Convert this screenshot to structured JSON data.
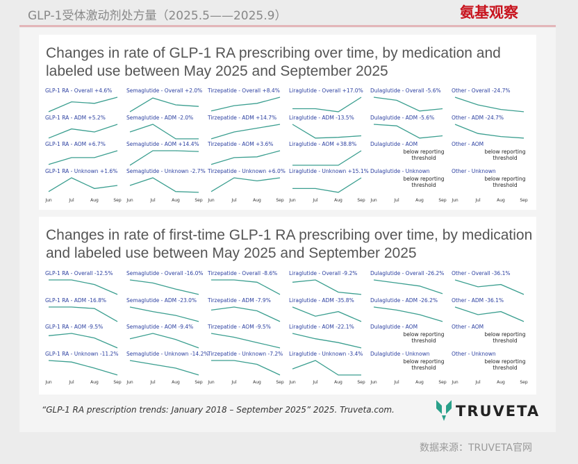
{
  "header": {
    "title": "GLP-1受体激动剂处方量（2025.5——2025.9）",
    "logo": "氨基观察"
  },
  "chart_data": [
    {
      "type": "line",
      "title": "Changes in rate of GLP-1 RA prescribing over time, by medication and labeled use between May 2025 and September 2025",
      "categories": [
        "Jun",
        "Jul",
        "Aug",
        "Sep"
      ],
      "ylim": [
        0,
        10
      ],
      "color": "#3a9e8f",
      "charts": [
        {
          "title": "GLP-1 RA - Overall +4.6%",
          "values": [
            0.5,
            7,
            6,
            10
          ]
        },
        {
          "title": "Semaglutide - Overall +2.0%",
          "values": [
            0.5,
            9.5,
            5,
            4
          ]
        },
        {
          "title": "Tirzepatide - Overall +8.4%",
          "values": [
            1,
            4.5,
            6,
            10
          ]
        },
        {
          "title": "Liraglutide - Overall +17.0%",
          "values": [
            2.5,
            2.5,
            0.5,
            10
          ]
        },
        {
          "title": "Dulaglutide - Overall -5.6%",
          "values": [
            10,
            8,
            1,
            2.5
          ]
        },
        {
          "title": "Other - Overall -24.7%",
          "values": [
            10,
            5,
            2,
            0.5
          ]
        },
        {
          "title": "GLP-1 RA - ADM +5.2%",
          "values": [
            1,
            7,
            5,
            10
          ]
        },
        {
          "title": "Semaglutide - ADM -2.0%",
          "values": [
            5,
            10,
            0.5,
            0.5
          ]
        },
        {
          "title": "Tirzepatide - ADM +14.7%",
          "values": [
            0.5,
            5,
            7.5,
            10
          ]
        },
        {
          "title": "Liraglutide - ADM -13.5%",
          "values": [
            10,
            1,
            1.5,
            2.5
          ]
        },
        {
          "title": "Dulaglutide - ADM -5.6%",
          "values": [
            10,
            9,
            1,
            2.5
          ]
        },
        {
          "title": "Other - ADM -24.7%",
          "values": [
            10,
            4,
            2,
            1
          ]
        },
        {
          "title": "GLP-1 RA - AOM +6.7%",
          "values": [
            1,
            5.5,
            5.5,
            10
          ]
        },
        {
          "title": "Semaglutide - AOM +14.4%",
          "values": [
            0.5,
            10,
            10,
            9.5
          ]
        },
        {
          "title": "Tirzepatide - AOM +3.6%",
          "values": [
            1,
            5.5,
            6,
            10
          ]
        },
        {
          "title": "Liraglutide - AOM +38.8%",
          "values": [
            0.5,
            0.5,
            0.5,
            10
          ]
        },
        {
          "title": "Dulaglutide - AOM",
          "note": "below reporting threshold"
        },
        {
          "title": "Other - AOM",
          "note": "below reporting threshold"
        },
        {
          "title": "GLP-1 RA - Unknown +1.6%",
          "values": [
            1,
            10,
            3,
            5
          ]
        },
        {
          "title": "Semaglutide - Unknown -2.7%",
          "values": [
            5,
            10,
            1,
            0.5
          ]
        },
        {
          "title": "Tirzepatide - Unknown +6.0%",
          "values": [
            1,
            10,
            8,
            10
          ]
        },
        {
          "title": "Liraglutide - Unknown +15.1%",
          "values": [
            3,
            3,
            0.5,
            10
          ]
        },
        {
          "title": "Dulaglutide - Unknown",
          "note": "below reporting threshold"
        },
        {
          "title": "Other - Unknown",
          "note": "below reporting threshold"
        }
      ]
    },
    {
      "type": "line",
      "title": "Changes in rate of first-time GLP-1 RA prescribing over time, by medication and labeled use between May 2025 and September 2025",
      "categories": [
        "Jun",
        "Jul",
        "Aug",
        "Sep"
      ],
      "ylim": [
        0,
        10
      ],
      "color": "#3a9e8f",
      "charts": [
        {
          "title": "GLP-1 RA - Overall -12.5%",
          "values": [
            10,
            10,
            7,
            0.5
          ]
        },
        {
          "title": "Semaglutide - Overall -16.0%",
          "values": [
            10,
            8,
            4,
            0.5
          ]
        },
        {
          "title": "Tirzepatide - Overall -8.6%",
          "values": [
            10,
            10,
            8.5,
            0.5
          ]
        },
        {
          "title": "Liraglutide - Overall -9.2%",
          "values": [
            8.5,
            10,
            2,
            0.5
          ]
        },
        {
          "title": "Dulaglutide - Overall -26.2%",
          "values": [
            10,
            8,
            6,
            1
          ]
        },
        {
          "title": "Other - Overall -36.1%",
          "values": [
            10,
            5.5,
            7,
            0.5
          ]
        },
        {
          "title": "GLP-1 RA - ADM -16.8%",
          "values": [
            10,
            10,
            9,
            0.5
          ]
        },
        {
          "title": "Semaglutide - ADM -23.0%",
          "values": [
            10,
            7,
            4.5,
            0.5
          ]
        },
        {
          "title": "Tirzepatide - ADM -7.9%",
          "values": [
            8,
            10,
            7.5,
            0.5
          ]
        },
        {
          "title": "Liraglutide - ADM -35.8%",
          "values": [
            10,
            4,
            7,
            0.5
          ]
        },
        {
          "title": "Dulaglutide - ADM -26.2%",
          "values": [
            10,
            8,
            5,
            0.5
          ]
        },
        {
          "title": "Other - ADM -36.1%",
          "values": [
            10,
            5,
            7,
            0.5
          ]
        },
        {
          "title": "GLP-1 RA - AOM -9.5%",
          "values": [
            8.5,
            10,
            7,
            0.5
          ]
        },
        {
          "title": "Semaglutide - AOM -9.4%",
          "values": [
            6.5,
            10,
            6,
            0.5
          ]
        },
        {
          "title": "Tirzepatide - AOM -9.5%",
          "values": [
            10,
            7.5,
            4,
            0.5
          ]
        },
        {
          "title": "Liraglutide - AOM -22.1%",
          "values": [
            10,
            6.5,
            4,
            0.5
          ]
        },
        {
          "title": "Dulaglutide - AOM",
          "note": "below reporting threshold"
        },
        {
          "title": "Other - AOM",
          "note": "below reporting threshold"
        },
        {
          "title": "GLP-1 RA - Unknown -11.2%",
          "values": [
            10,
            9,
            5,
            0.5
          ]
        },
        {
          "title": "Semaglutide - Unknown -14.2%",
          "values": [
            10,
            7.5,
            5,
            0.5
          ]
        },
        {
          "title": "Tirzepatide - Unknown -7.2%",
          "values": [
            10,
            10,
            7.5,
            0.5
          ]
        },
        {
          "title": "Liraglutide - Unknown -3.4%",
          "values": [
            4.5,
            10,
            0.5,
            0.5
          ]
        },
        {
          "title": "Dulaglutide - Unknown",
          "note": "below reporting threshold"
        },
        {
          "title": "Other - Unknown",
          "note": "below reporting threshold"
        }
      ]
    }
  ],
  "citation": "“GLP-1 RA prescription trends: January 2018 – September 2025” 2025. Truveta.com.",
  "brand": "TRUVETA",
  "footer": "数据来源：TRUVETA官网"
}
